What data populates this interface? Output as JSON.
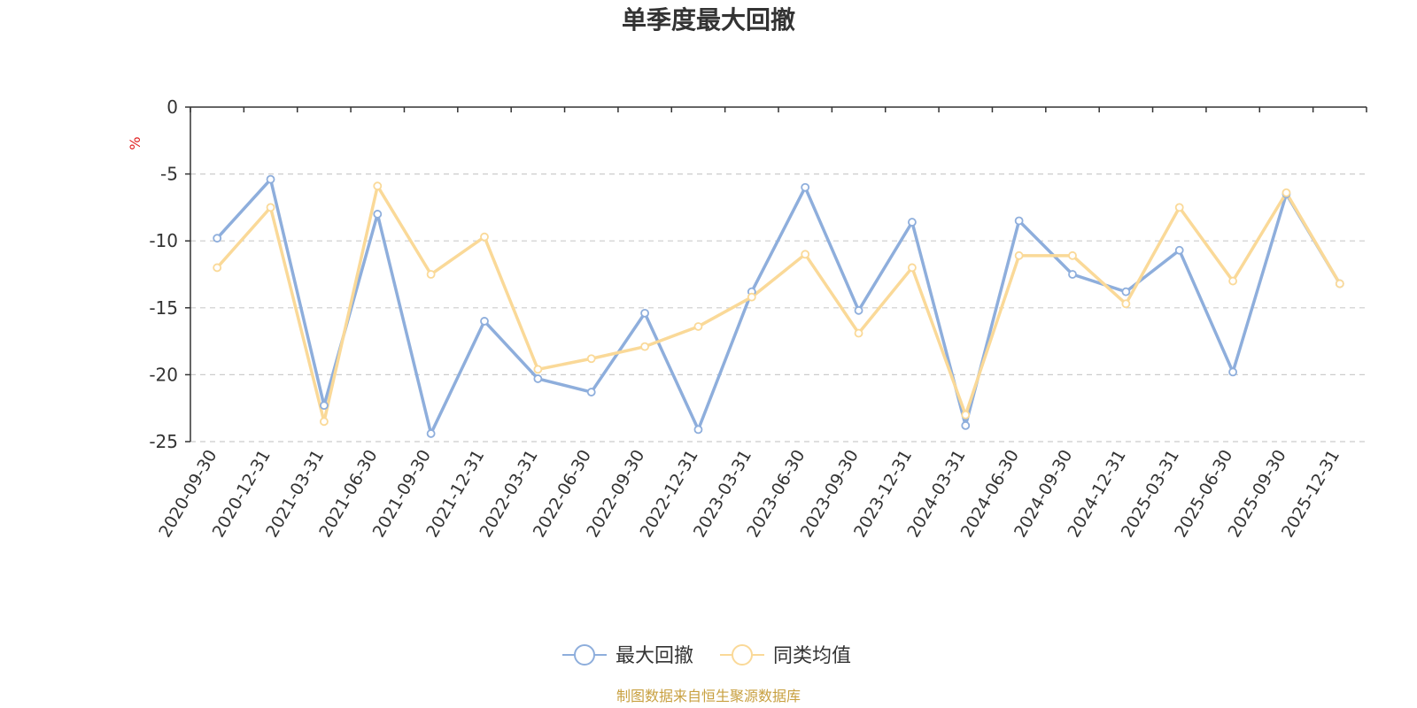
{
  "chart_data": {
    "type": "line",
    "title": "单季度最大回撤",
    "ylabel": "%",
    "ylim": [
      -25,
      0
    ],
    "yticks": [
      0,
      -5,
      -10,
      -15,
      -20,
      -25
    ],
    "grid": true,
    "legend_position": "bottom-center",
    "x": [
      "2020-09-30",
      "2020-12-31",
      "2021-03-31",
      "2021-06-30",
      "2021-09-30",
      "2021-12-31",
      "2022-03-31",
      "2022-06-30",
      "2022-09-30",
      "2022-12-31",
      "2023-03-31",
      "2023-06-30",
      "2023-09-30",
      "2023-12-31",
      "2024-03-31",
      "2024-06-30",
      "2024-09-30",
      "2024-12-31",
      "2025-03-31",
      "2025-06-30",
      "2025-09-30",
      "2025-12-31"
    ],
    "series": [
      {
        "name": "最大回撤",
        "color": "#8eaedc",
        "values": [
          -9.8,
          -5.4,
          -22.3,
          -8.0,
          -24.4,
          -16.0,
          -20.3,
          -21.3,
          -15.4,
          -24.1,
          -13.8,
          -6.0,
          -15.2,
          -8.6,
          -23.8,
          -8.5,
          -12.5,
          -13.8,
          -10.7,
          -19.8,
          -6.5,
          -13.2
        ]
      },
      {
        "name": "同类均值",
        "color": "#fad998",
        "values": [
          -12.0,
          -7.5,
          -23.5,
          -5.9,
          -12.5,
          -9.7,
          -19.6,
          -18.8,
          -17.9,
          -16.4,
          -14.2,
          -11.0,
          -16.9,
          -12.0,
          -23.0,
          -11.1,
          -11.1,
          -14.7,
          -7.5,
          -13.0,
          -6.4,
          -13.2
        ]
      }
    ]
  },
  "source_text": "制图数据来自恒生聚源数据库",
  "source_color": "#c8a040"
}
